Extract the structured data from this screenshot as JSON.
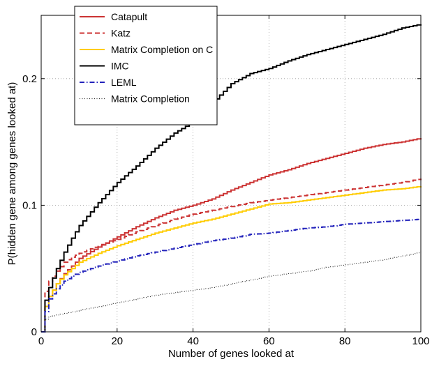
{
  "chart_data": {
    "type": "line",
    "title": "",
    "xlabel": "Number of genes looked at",
    "ylabel": "P(hidden gene among genes looked at)",
    "xlim": [
      0,
      100
    ],
    "ylim": [
      0,
      0.25
    ],
    "xticks": [
      0,
      20,
      40,
      60,
      80,
      100
    ],
    "yticks": [
      0,
      0.1,
      0.2
    ],
    "xtick_labels": [
      "0",
      "20",
      "40",
      "60",
      "80",
      "100"
    ],
    "ytick_labels": [
      "0",
      "0.1",
      "0.2"
    ],
    "grid": true,
    "legend_position": "top-left",
    "series": [
      {
        "name": "Catapult",
        "color": "#cc3333",
        "style": "solid",
        "x": [
          0,
          1,
          2,
          4,
          6,
          8,
          10,
          15,
          20,
          25,
          30,
          35,
          40,
          45,
          50,
          55,
          60,
          65,
          70,
          75,
          80,
          85,
          90,
          95,
          100
        ],
        "y": [
          0,
          0.02,
          0.028,
          0.038,
          0.046,
          0.052,
          0.058,
          0.067,
          0.075,
          0.083,
          0.09,
          0.096,
          0.1,
          0.105,
          0.112,
          0.118,
          0.124,
          0.128,
          0.133,
          0.137,
          0.141,
          0.145,
          0.148,
          0.15,
          0.153
        ]
      },
      {
        "name": "Katz",
        "color": "#cc3333",
        "style": "dashed",
        "x": [
          0,
          1,
          2,
          4,
          6,
          8,
          10,
          15,
          20,
          25,
          30,
          35,
          40,
          45,
          50,
          55,
          60,
          65,
          70,
          75,
          80,
          85,
          90,
          95,
          100
        ],
        "y": [
          0,
          0.032,
          0.04,
          0.048,
          0.055,
          0.059,
          0.062,
          0.068,
          0.073,
          0.079,
          0.084,
          0.089,
          0.093,
          0.096,
          0.099,
          0.102,
          0.104,
          0.106,
          0.108,
          0.11,
          0.112,
          0.114,
          0.116,
          0.118,
          0.121
        ]
      },
      {
        "name": "Matrix Completion on C",
        "color": "#ffcc00",
        "style": "solid",
        "x": [
          0,
          1,
          2,
          4,
          6,
          8,
          10,
          15,
          20,
          25,
          30,
          35,
          40,
          45,
          50,
          55,
          60,
          65,
          70,
          75,
          80,
          85,
          90,
          95,
          100
        ],
        "y": [
          0,
          0.02,
          0.028,
          0.038,
          0.045,
          0.05,
          0.055,
          0.062,
          0.068,
          0.073,
          0.078,
          0.082,
          0.086,
          0.089,
          0.093,
          0.097,
          0.101,
          0.102,
          0.104,
          0.106,
          0.108,
          0.11,
          0.112,
          0.113,
          0.115
        ]
      },
      {
        "name": "IMC",
        "color": "#000000",
        "style": "solid",
        "x": [
          0,
          1,
          2,
          4,
          6,
          8,
          10,
          15,
          20,
          25,
          30,
          35,
          40,
          45,
          50,
          55,
          60,
          65,
          70,
          75,
          80,
          85,
          90,
          95,
          100
        ],
        "y": [
          0,
          0.025,
          0.035,
          0.05,
          0.063,
          0.074,
          0.084,
          0.102,
          0.118,
          0.131,
          0.145,
          0.157,
          0.166,
          0.181,
          0.196,
          0.204,
          0.208,
          0.214,
          0.219,
          0.223,
          0.227,
          0.231,
          0.235,
          0.24,
          0.243
        ]
      },
      {
        "name": "LEML",
        "color": "#2222bb",
        "style": "dashdot",
        "x": [
          0,
          1,
          2,
          4,
          6,
          8,
          10,
          15,
          20,
          25,
          30,
          35,
          40,
          45,
          50,
          55,
          60,
          65,
          70,
          75,
          80,
          85,
          90,
          95,
          100
        ],
        "y": [
          0,
          0.016,
          0.026,
          0.034,
          0.04,
          0.044,
          0.047,
          0.052,
          0.056,
          0.06,
          0.063,
          0.066,
          0.069,
          0.072,
          0.074,
          0.077,
          0.078,
          0.08,
          0.082,
          0.083,
          0.085,
          0.086,
          0.087,
          0.088,
          0.089
        ]
      },
      {
        "name": "Matrix Completion",
        "color": "#333333",
        "style": "dotted",
        "x": [
          0,
          1,
          2,
          5,
          10,
          15,
          20,
          25,
          30,
          35,
          40,
          45,
          50,
          55,
          60,
          65,
          70,
          75,
          80,
          85,
          90,
          95,
          100
        ],
        "y": [
          0,
          0.01,
          0.012,
          0.014,
          0.017,
          0.02,
          0.023,
          0.026,
          0.029,
          0.031,
          0.033,
          0.035,
          0.038,
          0.041,
          0.044,
          0.046,
          0.048,
          0.051,
          0.053,
          0.055,
          0.057,
          0.06,
          0.063
        ]
      }
    ]
  }
}
